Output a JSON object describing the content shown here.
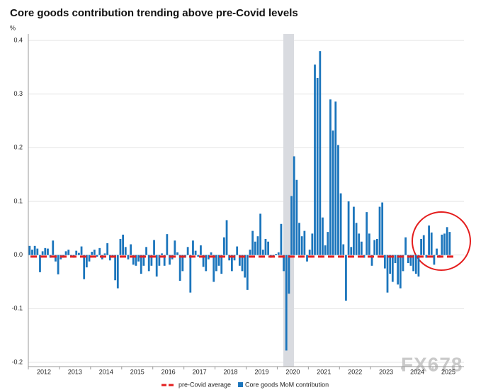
{
  "chart_data": {
    "type": "bar",
    "title": "Core goods contribution trending above pre-Covid levels",
    "y_unit": "%",
    "watermark": "FX678",
    "categories": [
      "2012",
      null,
      null,
      null,
      null,
      null,
      null,
      null,
      null,
      null,
      null,
      null,
      "2013",
      null,
      null,
      null,
      null,
      null,
      null,
      null,
      null,
      null,
      null,
      null,
      "2014",
      null,
      null,
      null,
      null,
      null,
      null,
      null,
      null,
      null,
      null,
      null,
      "2015",
      null,
      null,
      null,
      null,
      null,
      null,
      null,
      null,
      null,
      null,
      null,
      "2016",
      null,
      null,
      null,
      null,
      null,
      null,
      null,
      null,
      null,
      null,
      null,
      "2017",
      null,
      null,
      null,
      null,
      null,
      null,
      null,
      null,
      null,
      null,
      null,
      "2018",
      null,
      null,
      null,
      null,
      null,
      null,
      null,
      null,
      null,
      null,
      null,
      "2019",
      null,
      null,
      null,
      null,
      null,
      null,
      null,
      null,
      null,
      null,
      null,
      "2020",
      null,
      null,
      null,
      null,
      null,
      null,
      null,
      null,
      null,
      null,
      null,
      "2021",
      null,
      null,
      null,
      null,
      null,
      null,
      null,
      null,
      null,
      null,
      null,
      "2022",
      null,
      null,
      null,
      null,
      null,
      null,
      null,
      null,
      null,
      null,
      null,
      "2023",
      null,
      null,
      null,
      null,
      null,
      null,
      null,
      null,
      null,
      null,
      null,
      "2024",
      null,
      null,
      null,
      null,
      null,
      null,
      null,
      null,
      null,
      null,
      null,
      "2025",
      null,
      null,
      null,
      null,
      null,
      null
    ],
    "series": [
      {
        "name": "Core goods MoM contribution",
        "color": "#1b75bc",
        "values": [
          0.017,
          0.01,
          0.017,
          0.012,
          -0.032,
          0.007,
          0.013,
          0.012,
          -0.005,
          0.027,
          -0.012,
          -0.036,
          -0.008,
          -0.005,
          0.007,
          0.01,
          -0.003,
          -0.005,
          0.008,
          0.004,
          0.016,
          -0.045,
          -0.023,
          -0.012,
          0.006,
          0.01,
          -0.003,
          0.013,
          -0.008,
          0.003,
          0.022,
          -0.01,
          -0.005,
          -0.047,
          -0.062,
          0.03,
          0.038,
          0.015,
          -0.008,
          0.02,
          -0.018,
          -0.02,
          -0.012,
          -0.035,
          -0.02,
          0.015,
          -0.03,
          -0.02,
          0.028,
          -0.04,
          -0.02,
          0.003,
          -0.02,
          0.039,
          -0.018,
          -0.008,
          0.027,
          0.005,
          -0.048,
          -0.03,
          -0.005,
          0.015,
          -0.07,
          0.027,
          0.008,
          -0.003,
          0.018,
          -0.022,
          -0.03,
          -0.008,
          0.005,
          -0.05,
          -0.03,
          -0.02,
          -0.035,
          0.033,
          0.065,
          -0.01,
          -0.03,
          -0.01,
          0.016,
          -0.02,
          -0.03,
          -0.042,
          -0.065,
          0.01,
          0.045,
          0.025,
          0.035,
          0.077,
          0.01,
          0.03,
          0.025,
          -0.005,
          -0.003,
          0.002,
          0.005,
          0.058,
          -0.03,
          -0.178,
          -0.072,
          0.11,
          0.184,
          0.14,
          0.06,
          0.035,
          0.045,
          -0.012,
          0.01,
          0.04,
          0.355,
          0.33,
          0.38,
          0.07,
          0.018,
          0.043,
          0.29,
          0.232,
          0.286,
          0.205,
          0.115,
          0.02,
          -0.085,
          0.1,
          0.015,
          0.09,
          0.06,
          0.04,
          0.025,
          -0.005,
          0.08,
          0.04,
          -0.02,
          0.028,
          0.03,
          0.09,
          0.098,
          -0.025,
          -0.07,
          -0.035,
          -0.05,
          -0.015,
          -0.055,
          -0.062,
          -0.03,
          0.033,
          -0.015,
          -0.02,
          -0.03,
          -0.035,
          -0.04,
          0.03,
          0.037,
          -0.005,
          0.055,
          0.042,
          -0.018,
          0.012,
          -0.005,
          0.038,
          0.04,
          0.052,
          0.043
        ]
      }
    ],
    "reference_lines": [
      {
        "name": "pre-Covid average",
        "color": "#e41e1e",
        "value": -0.003
      }
    ],
    "ylim": [
      -0.2,
      0.4
    ],
    "yticks": [
      -0.2,
      -0.1,
      {
        "value": 0,
        "label": "0.0"
      },
      0.1,
      0.2,
      0.3,
      0.4
    ],
    "grid": true
  }
}
